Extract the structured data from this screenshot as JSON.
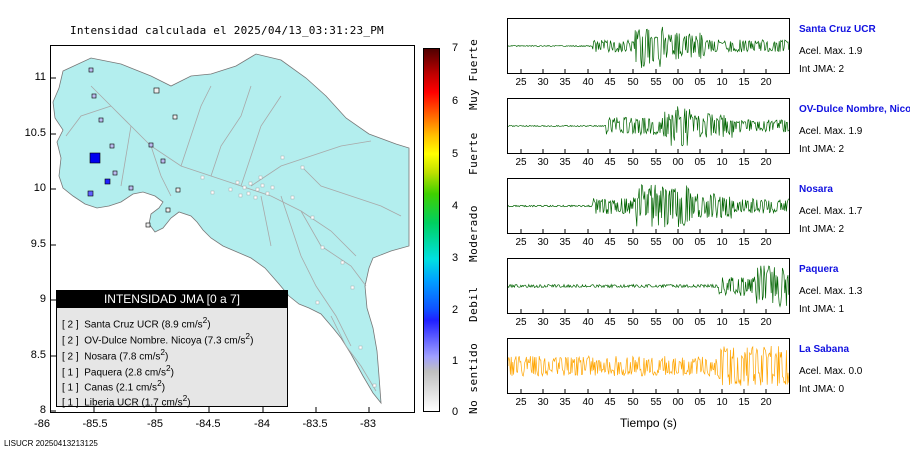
{
  "map": {
    "title": "Intensidad calculada el 2025/04/13_03:31:23_PM",
    "y_ticks": [
      "11",
      "10.5",
      "10",
      "9.5",
      "9",
      "8.5",
      "8"
    ],
    "x_ticks": [
      "-86",
      "-85.5",
      "-85",
      "-84.5",
      "-84",
      "-83.5",
      "-83"
    ],
    "land_color": "#b3eeee",
    "road_color": "#a8a8a8"
  },
  "legend": {
    "header": "INTENSIDAD JMA [0 a 7]",
    "rows": [
      {
        "level": "[ 2 ]",
        "name": "Santa Cruz UCR (8.9 cm/s",
        "sup": "2",
        "close": ")"
      },
      {
        "level": "[ 2 ]",
        "name": "OV-Dulce Nombre. Nicoya (7.3 cm/s",
        "sup": "2",
        "close": ")"
      },
      {
        "level": "[ 2 ]",
        "name": "Nosara (7.8 cm/s",
        "sup": "2",
        "close": ")"
      },
      {
        "level": "[ 1 ]",
        "name": "Paquera (2.8 cm/s",
        "sup": "2",
        "close": ")"
      },
      {
        "level": "[ 1 ]",
        "name": "Canas (2.1 cm/s",
        "sup": "2",
        "close": ")"
      },
      {
        "level": "[ 1 ]",
        "name": "Liberia UCR (1.7 cm/s",
        "sup": "2",
        "close": ")"
      }
    ]
  },
  "colorbar": {
    "ticks": [
      "7",
      "6",
      "5",
      "4",
      "3",
      "2",
      "1",
      "0"
    ],
    "labels": [
      "Muy Fuerte",
      "Fuerte",
      "Moderado",
      "Debil",
      "No sentido"
    ]
  },
  "footer": "LISUCR 20250413213125",
  "waveforms": {
    "x_ticks": [
      "25",
      "30",
      "35",
      "40",
      "45",
      "50",
      "55",
      "00",
      "05",
      "10",
      "15",
      "20"
    ],
    "bottom_ticks": [
      "25",
      "30",
      "35",
      "40",
      "45",
      "50",
      "55",
      "00",
      "05",
      "10",
      "15",
      "20"
    ],
    "xlabel": "Tiempo (s)",
    "stations": [
      {
        "name": "Santa Cruz UCR",
        "acel": "Acel. Max. 1.9",
        "int": "Int JMA: 2",
        "color": "#006400"
      },
      {
        "name": "OV-Dulce Nombre, Nicoya",
        "acel": "Acel. Max. 1.9",
        "int": "Int JMA: 2",
        "color": "#006400"
      },
      {
        "name": "Nosara",
        "acel": "Acel. Max. 1.7",
        "int": "Int JMA: 2",
        "color": "#006400"
      },
      {
        "name": "Paquera",
        "acel": "Acel. Max. 1.3",
        "int": "Int JMA: 1",
        "color": "#006400"
      },
      {
        "name": "La Sabana",
        "acel": "Acel. Max. 0.0",
        "int": "Int JMA: 0",
        "color": "#ffa500"
      }
    ]
  }
}
